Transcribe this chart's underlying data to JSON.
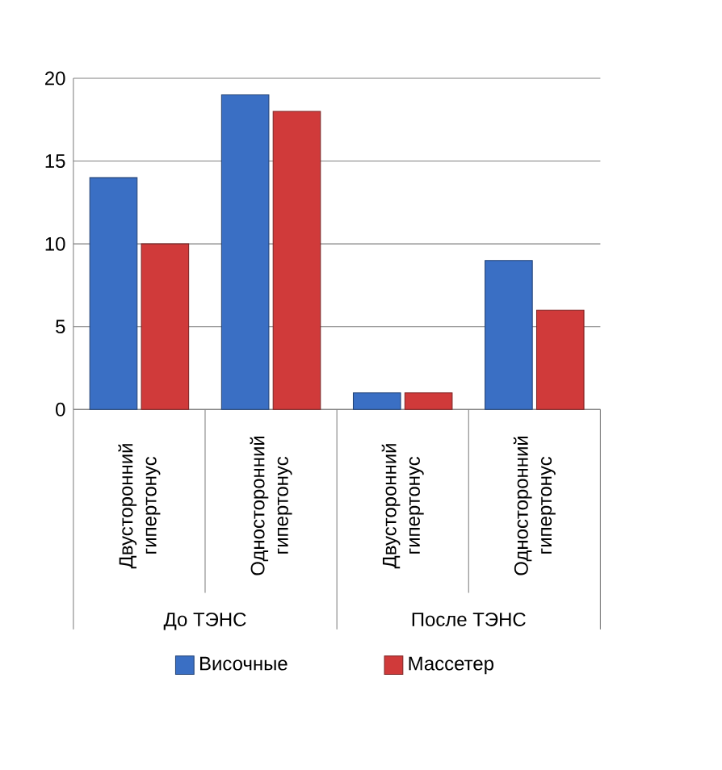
{
  "chart_data": {
    "type": "bar",
    "categories": [
      "Двусторонний гипертонус",
      "Односторонний гипертонус",
      "Двусторонний гипертонус",
      "Односторонний гипертонус"
    ],
    "series": [
      {
        "name": "Височные",
        "color": "#3a6fc4",
        "values": [
          14,
          19,
          1,
          9
        ]
      },
      {
        "name": "Массетер",
        "color": "#d03a3a",
        "values": [
          10,
          18,
          1,
          6
        ]
      }
    ],
    "annotations": [
      "До ТЭНС",
      "После ТЭНС"
    ],
    "ylim": [
      0,
      20
    ],
    "yticks": [
      0,
      5,
      10,
      15,
      20
    ],
    "grid": "y",
    "legend": "bottom"
  }
}
